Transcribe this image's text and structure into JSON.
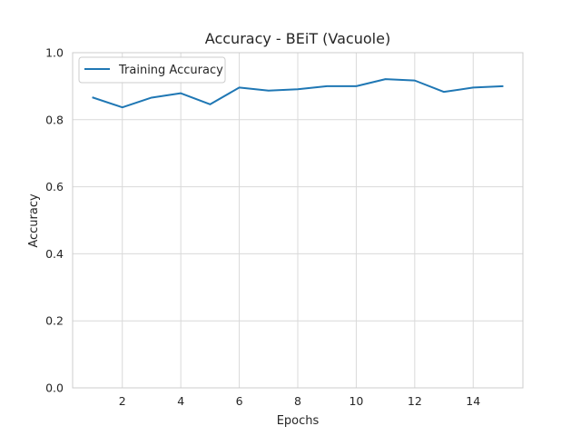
{
  "chart_data": {
    "type": "line",
    "title": "Accuracy - BEiT (Vacuole)",
    "xlabel": "Epochs",
    "ylabel": "Accuracy",
    "xlim": [
      0.3,
      15.7
    ],
    "ylim": [
      0.0,
      1.0
    ],
    "xticks": [
      2,
      4,
      6,
      8,
      10,
      12,
      14
    ],
    "xtick_labels": [
      "2",
      "4",
      "6",
      "8",
      "10",
      "12",
      "14"
    ],
    "yticks": [
      0.0,
      0.2,
      0.4,
      0.6,
      0.8,
      1.0
    ],
    "ytick_labels": [
      "0.0",
      "0.2",
      "0.4",
      "0.6",
      "0.8",
      "1.0"
    ],
    "grid": true,
    "legend_position": "upper-left",
    "x": [
      1,
      2,
      3,
      4,
      5,
      6,
      7,
      8,
      9,
      10,
      11,
      12,
      13,
      14,
      15
    ],
    "series": [
      {
        "name": "Training Accuracy",
        "color": "#1f77b4",
        "values": [
          0.866,
          0.837,
          0.866,
          0.879,
          0.846,
          0.896,
          0.887,
          0.891,
          0.9,
          0.9,
          0.921,
          0.917,
          0.883,
          0.896,
          0.9
        ]
      }
    ],
    "grid_color": "#d9d9d9",
    "axes_edge_color": "#cccccc"
  }
}
